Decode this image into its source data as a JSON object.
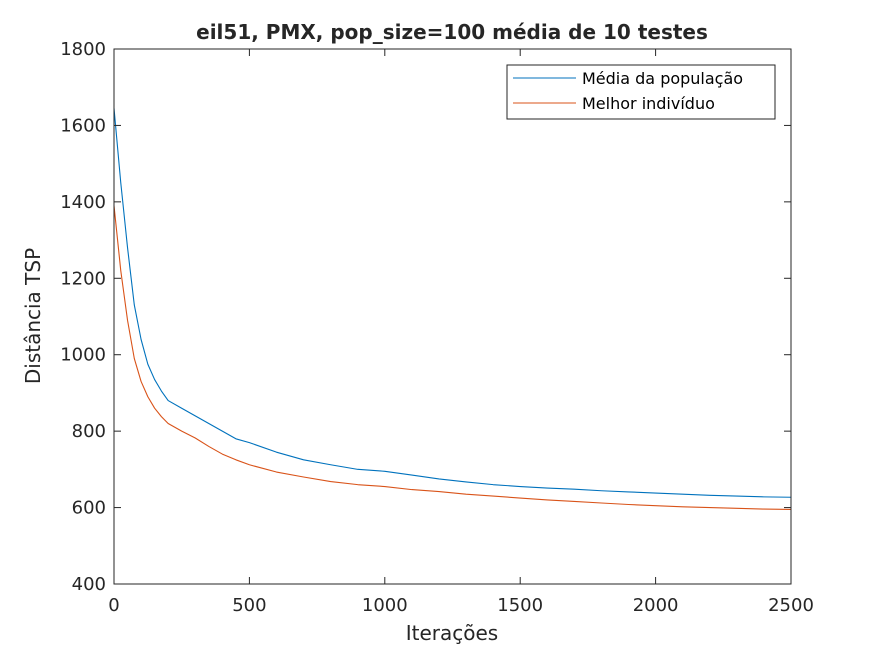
{
  "chart_data": {
    "type": "line",
    "title": "eil51, PMX, pop_size=100 média de 10 testes",
    "xlabel": "Iterações",
    "ylabel": "Distância TSP",
    "xlim": [
      0,
      2500
    ],
    "ylim": [
      400,
      1800
    ],
    "xticks": [
      0,
      500,
      1000,
      1500,
      2000,
      2500
    ],
    "yticks": [
      400,
      600,
      800,
      1000,
      1200,
      1400,
      1600,
      1800
    ],
    "grid": false,
    "legend_position": "top-right",
    "series": [
      {
        "name": "Média da população",
        "color": "#0072BD",
        "x": [
          0,
          25,
          50,
          75,
          100,
          125,
          150,
          175,
          200,
          250,
          300,
          350,
          400,
          450,
          500,
          600,
          700,
          800,
          900,
          1000,
          1100,
          1200,
          1300,
          1400,
          1500,
          1600,
          1700,
          1800,
          1900,
          2000,
          2100,
          2200,
          2300,
          2400,
          2500
        ],
        "y": [
          1645,
          1450,
          1280,
          1130,
          1040,
          975,
          935,
          905,
          880,
          860,
          840,
          820,
          800,
          780,
          770,
          745,
          725,
          712,
          700,
          695,
          685,
          675,
          667,
          660,
          655,
          651,
          648,
          644,
          641,
          638,
          635,
          632,
          630,
          628,
          627
        ]
      },
      {
        "name": "Melhor indivíduo",
        "color": "#D95319",
        "x": [
          0,
          25,
          50,
          75,
          100,
          125,
          150,
          175,
          200,
          250,
          300,
          350,
          400,
          450,
          500,
          600,
          700,
          800,
          900,
          1000,
          1100,
          1200,
          1300,
          1400,
          1500,
          1600,
          1700,
          1800,
          1900,
          2000,
          2100,
          2200,
          2300,
          2400,
          2500
        ],
        "y": [
          1390,
          1220,
          1090,
          990,
          930,
          890,
          860,
          838,
          820,
          800,
          782,
          760,
          740,
          725,
          712,
          693,
          680,
          668,
          660,
          655,
          647,
          642,
          635,
          630,
          625,
          620,
          616,
          612,
          608,
          605,
          602,
          600,
          598,
          596,
          595
        ]
      }
    ]
  }
}
